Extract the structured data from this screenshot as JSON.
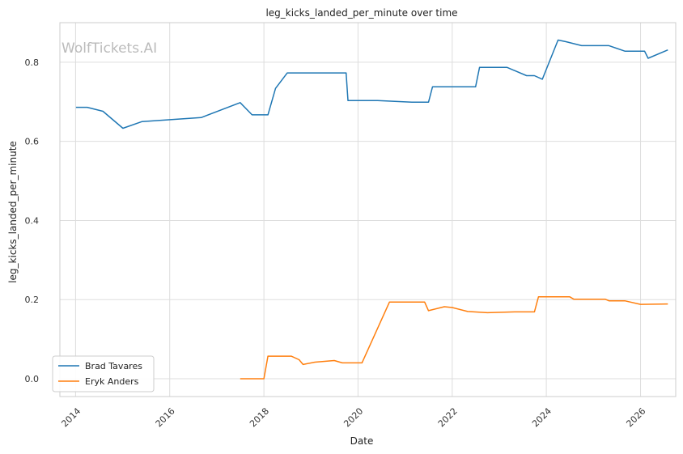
{
  "chart_data": {
    "type": "line",
    "title": "leg_kicks_landed_per_minute over time",
    "xlabel": "Date",
    "ylabel": "leg_kicks_landed_per_minute",
    "watermark": "WolfTickets.AI",
    "xlim": [
      "2013-09-01",
      "2026-10-01"
    ],
    "ylim": [
      -0.045,
      0.9
    ],
    "x_ticks": [
      "2014",
      "2016",
      "2018",
      "2020",
      "2022",
      "2024",
      "2026"
    ],
    "y_ticks": [
      "0.0",
      "0.2",
      "0.4",
      "0.6",
      "0.8"
    ],
    "grid": true,
    "legend_position": "lower-left",
    "series": [
      {
        "name": "Brad Tavares",
        "color": "#1f77b4",
        "points": [
          [
            "2014-01-04",
            0.686
          ],
          [
            "2014-04-01",
            0.686
          ],
          [
            "2014-08-01",
            0.676
          ],
          [
            "2015-01-03",
            0.633
          ],
          [
            "2015-06-01",
            0.65
          ],
          [
            "2016-09-01",
            0.66
          ],
          [
            "2017-07-01",
            0.698
          ],
          [
            "2017-10-01",
            0.667
          ],
          [
            "2018-02-01",
            0.667
          ],
          [
            "2018-04-01",
            0.734
          ],
          [
            "2018-07-01",
            0.773
          ],
          [
            "2019-10-01",
            0.773
          ],
          [
            "2019-10-15",
            0.703
          ],
          [
            "2020-06-01",
            0.703
          ],
          [
            "2021-03-01",
            0.699
          ],
          [
            "2021-07-01",
            0.699
          ],
          [
            "2021-08-01",
            0.738
          ],
          [
            "2022-07-01",
            0.738
          ],
          [
            "2022-08-01",
            0.787
          ],
          [
            "2023-03-01",
            0.787
          ],
          [
            "2023-08-01",
            0.766
          ],
          [
            "2023-10-01",
            0.766
          ],
          [
            "2023-12-01",
            0.757
          ],
          [
            "2024-04-01",
            0.856
          ],
          [
            "2024-06-01",
            0.852
          ],
          [
            "2024-10-01",
            0.842
          ],
          [
            "2025-05-01",
            0.842
          ],
          [
            "2025-09-01",
            0.828
          ],
          [
            "2026-02-01",
            0.828
          ],
          [
            "2026-03-01",
            0.81
          ],
          [
            "2026-08-01",
            0.831
          ]
        ]
      },
      {
        "name": "Eryk Anders",
        "color": "#ff7f0e",
        "points": [
          [
            "2017-07-01",
            0.0
          ],
          [
            "2018-01-01",
            0.0
          ],
          [
            "2018-02-01",
            0.057
          ],
          [
            "2018-08-01",
            0.057
          ],
          [
            "2018-10-01",
            0.048
          ],
          [
            "2018-11-01",
            0.036
          ],
          [
            "2019-02-01",
            0.042
          ],
          [
            "2019-07-01",
            0.046
          ],
          [
            "2019-09-01",
            0.04
          ],
          [
            "2020-02-01",
            0.04
          ],
          [
            "2020-09-01",
            0.194
          ],
          [
            "2021-06-01",
            0.194
          ],
          [
            "2021-07-01",
            0.172
          ],
          [
            "2021-11-01",
            0.182
          ],
          [
            "2022-01-01",
            0.18
          ],
          [
            "2022-05-01",
            0.17
          ],
          [
            "2022-10-01",
            0.167
          ],
          [
            "2023-05-01",
            0.169
          ],
          [
            "2023-10-01",
            0.169
          ],
          [
            "2023-11-01",
            0.207
          ],
          [
            "2024-07-01",
            0.207
          ],
          [
            "2024-08-01",
            0.201
          ],
          [
            "2025-04-01",
            0.201
          ],
          [
            "2025-05-01",
            0.197
          ],
          [
            "2025-09-01",
            0.197
          ],
          [
            "2026-01-01",
            0.188
          ],
          [
            "2026-08-01",
            0.189
          ]
        ]
      }
    ]
  }
}
